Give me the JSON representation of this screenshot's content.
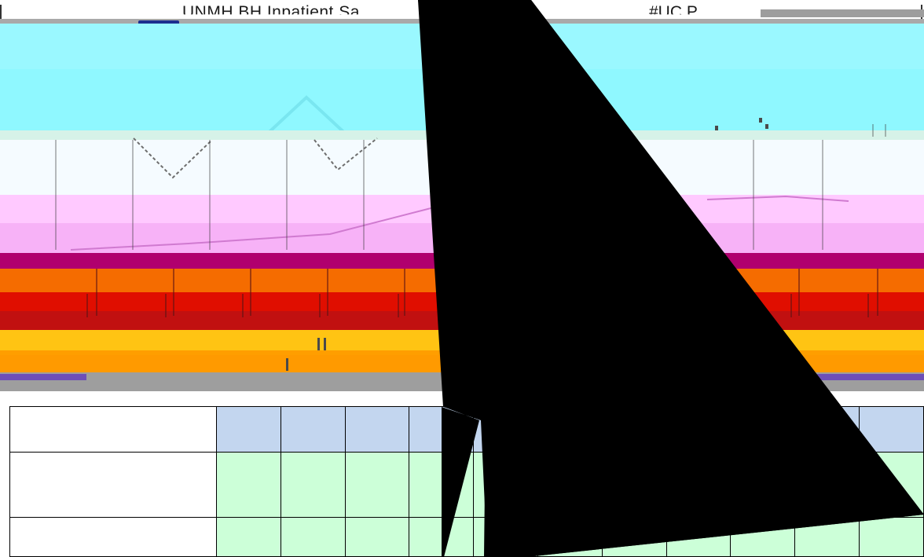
{
  "header": {
    "title": "UNMH BH Inpatient Sa",
    "code": "#UC P"
  },
  "table": {
    "header_cells": [
      "",
      "",
      "",
      "",
      "",
      "",
      "",
      "",
      "",
      "",
      "",
      ""
    ],
    "rows": [
      [
        "",
        "",
        "",
        "",
        "",
        "",
        "",
        "",
        "",
        "",
        "",
        ""
      ],
      [
        "",
        "",
        "",
        "",
        "",
        "",
        "",
        "",
        "",
        "",
        "",
        ""
      ]
    ]
  },
  "colors": {
    "cyan_band": "#8ff8ff",
    "pink_band": "#f7b2f7",
    "magenta": "#b0006e",
    "orange": "#f56c00",
    "red": "#e00e00",
    "gold": "#ffc413",
    "table_header": "#c3d6ef",
    "table_body": "#ccffd8",
    "arrow": "#000000"
  },
  "icons": [
    "arrow-icon"
  ]
}
